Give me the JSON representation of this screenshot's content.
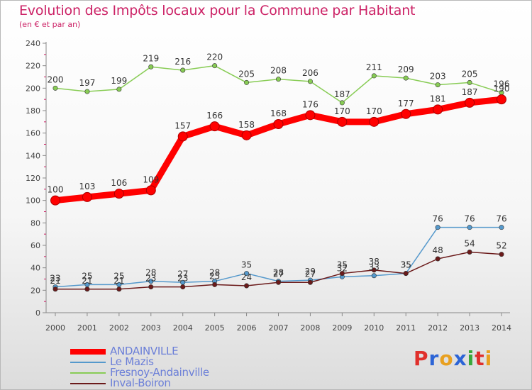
{
  "title": "Evolution des Impôts locaux pour la Commune par Habitant",
  "subtitle": "(en € et par an)",
  "brand": "Proxiti",
  "chart_data": {
    "type": "line",
    "title": "Evolution des Impôts locaux pour la Commune par Habitant",
    "subtitle": "(en € et par an)",
    "xlabel": "",
    "ylabel": "",
    "x": [
      "2000",
      "2001",
      "2002",
      "2003",
      "2004",
      "2005",
      "2006",
      "2007",
      "2008",
      "2009",
      "2010",
      "2011",
      "2012",
      "2013",
      "2014"
    ],
    "ylim": [
      0,
      240
    ],
    "yticks": [
      0,
      20,
      40,
      60,
      80,
      100,
      120,
      140,
      160,
      180,
      200,
      220,
      240
    ],
    "grid": false,
    "legend_position": "bottom-left",
    "series": [
      {
        "name": "ANDAINVILLE",
        "color": "#ff0000",
        "values": [
          100,
          103,
          106,
          109,
          157,
          166,
          158,
          168,
          176,
          170,
          170,
          177,
          181,
          187,
          190
        ]
      },
      {
        "name": "Le Mazis",
        "color": "#5599cc",
        "values": [
          23,
          25,
          25,
          28,
          27,
          28,
          35,
          28,
          29,
          32,
          33,
          35,
          76,
          76,
          76
        ]
      },
      {
        "name": "Fresnoy-Andainville",
        "color": "#88cc55",
        "values": [
          200,
          197,
          199,
          219,
          216,
          220,
          205,
          208,
          206,
          187,
          211,
          209,
          203,
          205,
          196
        ]
      },
      {
        "name": "Inval-Boiron",
        "color": "#6b1a1a",
        "values": [
          21,
          21,
          21,
          23,
          23,
          25,
          24,
          27,
          27,
          35,
          38,
          35,
          48,
          54,
          52
        ]
      }
    ]
  }
}
